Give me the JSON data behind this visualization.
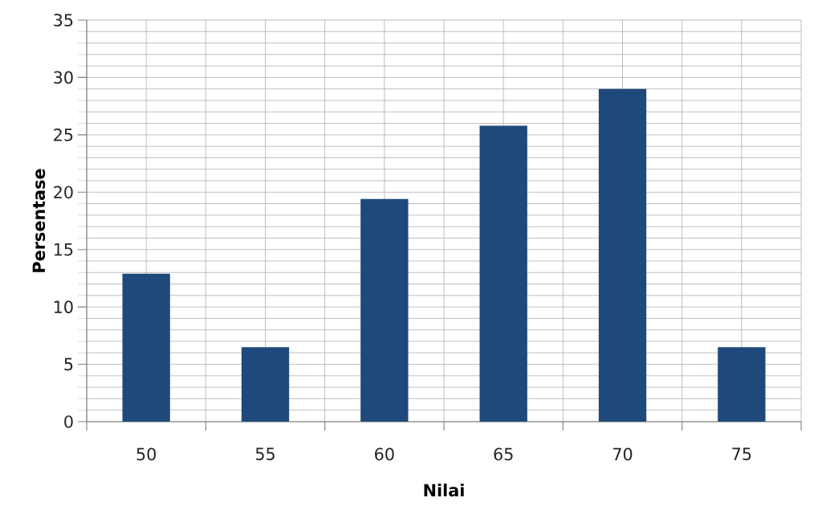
{
  "chart_data": {
    "type": "bar",
    "xlabel": "Nilai",
    "ylabel": "Persentase",
    "categories": [
      "50",
      "55",
      "60",
      "65",
      "70",
      "75"
    ],
    "values": [
      12.9,
      6.5,
      19.4,
      25.8,
      29.0,
      6.5
    ],
    "color": "#20497b",
    "ylim": [
      0,
      35
    ],
    "yticks": [
      0,
      5,
      10,
      15,
      20,
      25,
      30,
      35
    ],
    "grid": true
  }
}
